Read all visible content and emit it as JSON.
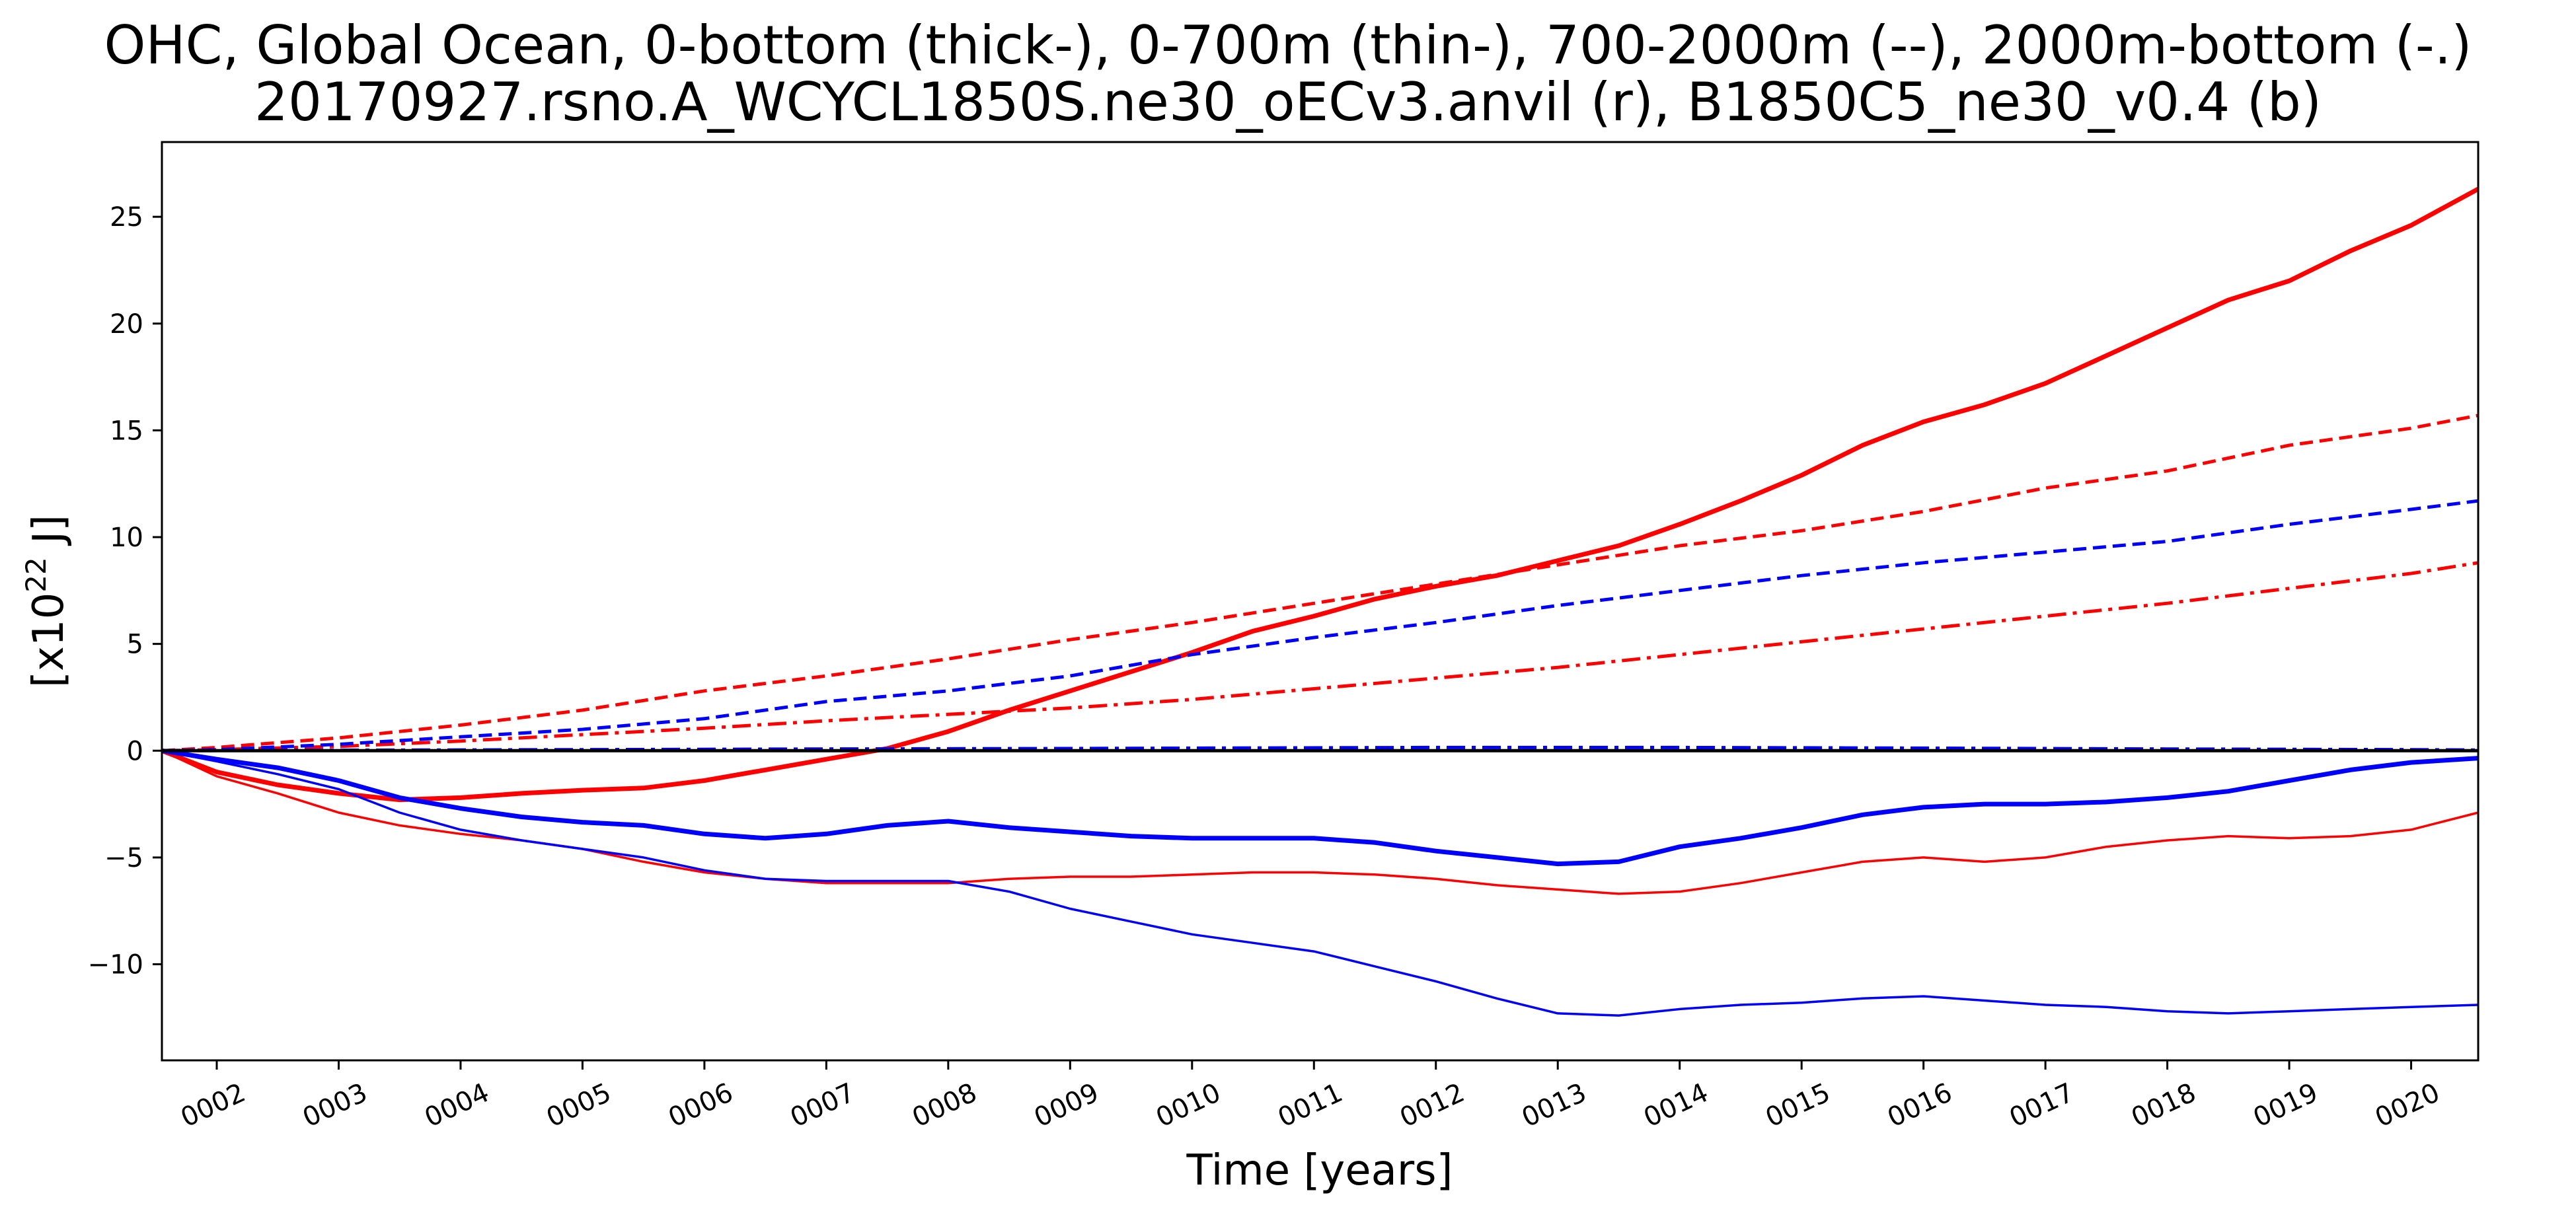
{
  "chart_data": {
    "type": "line",
    "title": "OHC, Global Ocean, 0-bottom (thick-), 0-700m (thin-), 700-2000m (--), 2000m-bottom (-.)",
    "subtitle": "20170927.rsno.A_WCYCL1850S.ne30_oECv3.anvil (r), B1850C5_ne30_v0.4 (b)",
    "xlabel": "Time [years]",
    "ylabel_prefix": "[x10",
    "ylabel_exp": "22",
    "ylabel_suffix": " J]",
    "xlim": [
      1.55,
      20.55
    ],
    "ylim": [
      -14.5,
      28.5
    ],
    "xticks": [
      {
        "v": 2,
        "label": "0002"
      },
      {
        "v": 3,
        "label": "0003"
      },
      {
        "v": 4,
        "label": "0004"
      },
      {
        "v": 5,
        "label": "0005"
      },
      {
        "v": 6,
        "label": "0006"
      },
      {
        "v": 7,
        "label": "0007"
      },
      {
        "v": 8,
        "label": "0008"
      },
      {
        "v": 9,
        "label": "0009"
      },
      {
        "v": 10,
        "label": "0010"
      },
      {
        "v": 11,
        "label": "0011"
      },
      {
        "v": 12,
        "label": "0012"
      },
      {
        "v": 13,
        "label": "0013"
      },
      {
        "v": 14,
        "label": "0014"
      },
      {
        "v": 15,
        "label": "0015"
      },
      {
        "v": 16,
        "label": "0016"
      },
      {
        "v": 17,
        "label": "0017"
      },
      {
        "v": 18,
        "label": "0018"
      },
      {
        "v": 19,
        "label": "0019"
      },
      {
        "v": 20,
        "label": "0020"
      }
    ],
    "yticks": [
      {
        "v": -10,
        "label": "−10"
      },
      {
        "v": -5,
        "label": "−5"
      },
      {
        "v": 0,
        "label": "0"
      },
      {
        "v": 5,
        "label": "5"
      },
      {
        "v": 10,
        "label": "10"
      },
      {
        "v": 15,
        "label": "15"
      },
      {
        "v": 20,
        "label": "20"
      },
      {
        "v": 25,
        "label": "25"
      }
    ],
    "grid": false,
    "colors": {
      "red": "#ff0000",
      "blue": "#0000ff",
      "black": "#000000"
    },
    "series": [
      {
        "color": "red",
        "style": "thick",
        "x": [
          1.55,
          2,
          2.5,
          3,
          3.5,
          4,
          4.5,
          5,
          5.5,
          6,
          6.5,
          7,
          7.5,
          8,
          8.5,
          9,
          9.5,
          10,
          10.5,
          11,
          11.5,
          12,
          12.5,
          13,
          13.5,
          14,
          14.5,
          15,
          15.5,
          16,
          16.5,
          17,
          17.5,
          18,
          18.5,
          19,
          19.5,
          20,
          20.55
        ],
        "y": [
          0,
          -1.0,
          -1.6,
          -2.0,
          -2.3,
          -2.2,
          -2.0,
          -1.85,
          -1.75,
          -1.4,
          -0.9,
          -0.4,
          0.1,
          0.9,
          1.9,
          2.8,
          3.7,
          4.6,
          5.6,
          6.3,
          7.1,
          7.7,
          8.2,
          8.9,
          9.6,
          10.6,
          11.7,
          12.9,
          14.3,
          15.4,
          16.2,
          17.2,
          18.5,
          19.8,
          21.1,
          22.0,
          23.4,
          24.6,
          26.3
        ]
      },
      {
        "color": "red",
        "style": "thin",
        "x": [
          1.55,
          2,
          2.5,
          3,
          3.5,
          4,
          4.5,
          5,
          5.5,
          6,
          6.5,
          7,
          7.5,
          8,
          8.5,
          9,
          9.5,
          10,
          10.5,
          11,
          11.5,
          12,
          12.5,
          13,
          13.5,
          14,
          14.5,
          15,
          15.5,
          16,
          16.5,
          17,
          17.5,
          18,
          18.5,
          19,
          19.5,
          20,
          20.55
        ],
        "y": [
          0,
          -1.2,
          -2.0,
          -2.9,
          -3.5,
          -3.9,
          -4.2,
          -4.6,
          -5.2,
          -5.7,
          -6.0,
          -6.2,
          -6.2,
          -6.2,
          -6.0,
          -5.9,
          -5.9,
          -5.8,
          -5.7,
          -5.7,
          -5.8,
          -6.0,
          -6.3,
          -6.5,
          -6.7,
          -6.6,
          -6.2,
          -5.7,
          -5.2,
          -5.0,
          -5.2,
          -5.0,
          -4.5,
          -4.2,
          -4.0,
          -4.1,
          -4.0,
          -3.7,
          -2.9
        ]
      },
      {
        "color": "red",
        "style": "dashed",
        "x": [
          1.55,
          2,
          3,
          4,
          5,
          6,
          7,
          8,
          9,
          10,
          11,
          12,
          13,
          14,
          15,
          16,
          17,
          18,
          19,
          20,
          20.55
        ],
        "y": [
          0,
          0.15,
          0.6,
          1.2,
          1.9,
          2.8,
          3.5,
          4.3,
          5.2,
          6.0,
          6.9,
          7.8,
          8.7,
          9.6,
          10.3,
          11.2,
          12.3,
          13.1,
          14.3,
          15.1,
          15.7
        ]
      },
      {
        "color": "red",
        "style": "dashdot",
        "x": [
          1.55,
          2,
          3,
          4,
          5,
          6,
          7,
          8,
          9,
          10,
          11,
          12,
          13,
          14,
          15,
          16,
          17,
          18,
          19,
          20,
          20.55
        ],
        "y": [
          0,
          0.05,
          0.2,
          0.45,
          0.75,
          1.05,
          1.4,
          1.7,
          2.0,
          2.4,
          2.9,
          3.4,
          3.9,
          4.5,
          5.1,
          5.7,
          6.3,
          6.9,
          7.6,
          8.3,
          8.8
        ]
      },
      {
        "color": "blue",
        "style": "thick",
        "x": [
          1.55,
          2,
          2.5,
          3,
          3.5,
          4,
          4.5,
          5,
          5.5,
          6,
          6.5,
          7,
          7.5,
          8,
          8.5,
          9,
          9.5,
          10,
          10.5,
          11,
          11.5,
          12,
          12.5,
          13,
          13.5,
          14,
          14.5,
          15,
          15.5,
          16,
          16.5,
          17,
          17.5,
          18,
          18.5,
          19,
          19.5,
          20,
          20.55
        ],
        "y": [
          0,
          -0.4,
          -0.8,
          -1.4,
          -2.2,
          -2.7,
          -3.1,
          -3.35,
          -3.5,
          -3.9,
          -4.1,
          -3.9,
          -3.5,
          -3.3,
          -3.6,
          -3.8,
          -4.0,
          -4.1,
          -4.1,
          -4.1,
          -4.3,
          -4.7,
          -5.0,
          -5.3,
          -5.2,
          -4.5,
          -4.1,
          -3.6,
          -3.0,
          -2.65,
          -2.5,
          -2.5,
          -2.4,
          -2.2,
          -1.9,
          -1.4,
          -0.9,
          -0.55,
          -0.35
        ]
      },
      {
        "color": "blue",
        "style": "thin",
        "x": [
          1.55,
          2,
          2.5,
          3,
          3.5,
          4,
          4.5,
          5,
          5.5,
          6,
          6.5,
          7,
          7.5,
          8,
          8.5,
          9,
          9.5,
          10,
          10.5,
          11,
          11.5,
          12,
          12.5,
          13,
          13.5,
          14,
          14.5,
          15,
          15.5,
          16,
          16.5,
          17,
          17.5,
          18,
          18.5,
          19,
          19.5,
          20,
          20.55
        ],
        "y": [
          0,
          -0.5,
          -1.1,
          -1.8,
          -2.9,
          -3.7,
          -4.2,
          -4.6,
          -5.0,
          -5.6,
          -6.0,
          -6.1,
          -6.1,
          -6.1,
          -6.6,
          -7.4,
          -8.0,
          -8.6,
          -9.0,
          -9.4,
          -10.1,
          -10.8,
          -11.6,
          -12.3,
          -12.4,
          -12.1,
          -11.9,
          -11.8,
          -11.6,
          -11.5,
          -11.7,
          -11.9,
          -12.0,
          -12.2,
          -12.3,
          -12.2,
          -12.1,
          -12.0,
          -11.9
        ]
      },
      {
        "color": "blue",
        "style": "dashed",
        "x": [
          1.55,
          2,
          3,
          4,
          5,
          6,
          7,
          8,
          9,
          10,
          11,
          12,
          13,
          14,
          15,
          16,
          17,
          18,
          19,
          20,
          20.55
        ],
        "y": [
          0,
          0.05,
          0.3,
          0.65,
          1.0,
          1.5,
          2.3,
          2.8,
          3.5,
          4.5,
          5.3,
          6.0,
          6.8,
          7.5,
          8.2,
          8.8,
          9.3,
          9.8,
          10.6,
          11.3,
          11.7
        ]
      },
      {
        "color": "blue",
        "style": "dashdot",
        "x": [
          1.55,
          3,
          5,
          7,
          9,
          10,
          12,
          14,
          16,
          18,
          20,
          20.55
        ],
        "y": [
          0,
          0.02,
          0.05,
          0.08,
          0.1,
          0.12,
          0.15,
          0.15,
          0.12,
          0.08,
          0.05,
          0.03
        ]
      },
      {
        "color": "black",
        "style": "baseline",
        "x": [
          1.55,
          20.55
        ],
        "y": [
          0,
          0
        ]
      }
    ]
  }
}
